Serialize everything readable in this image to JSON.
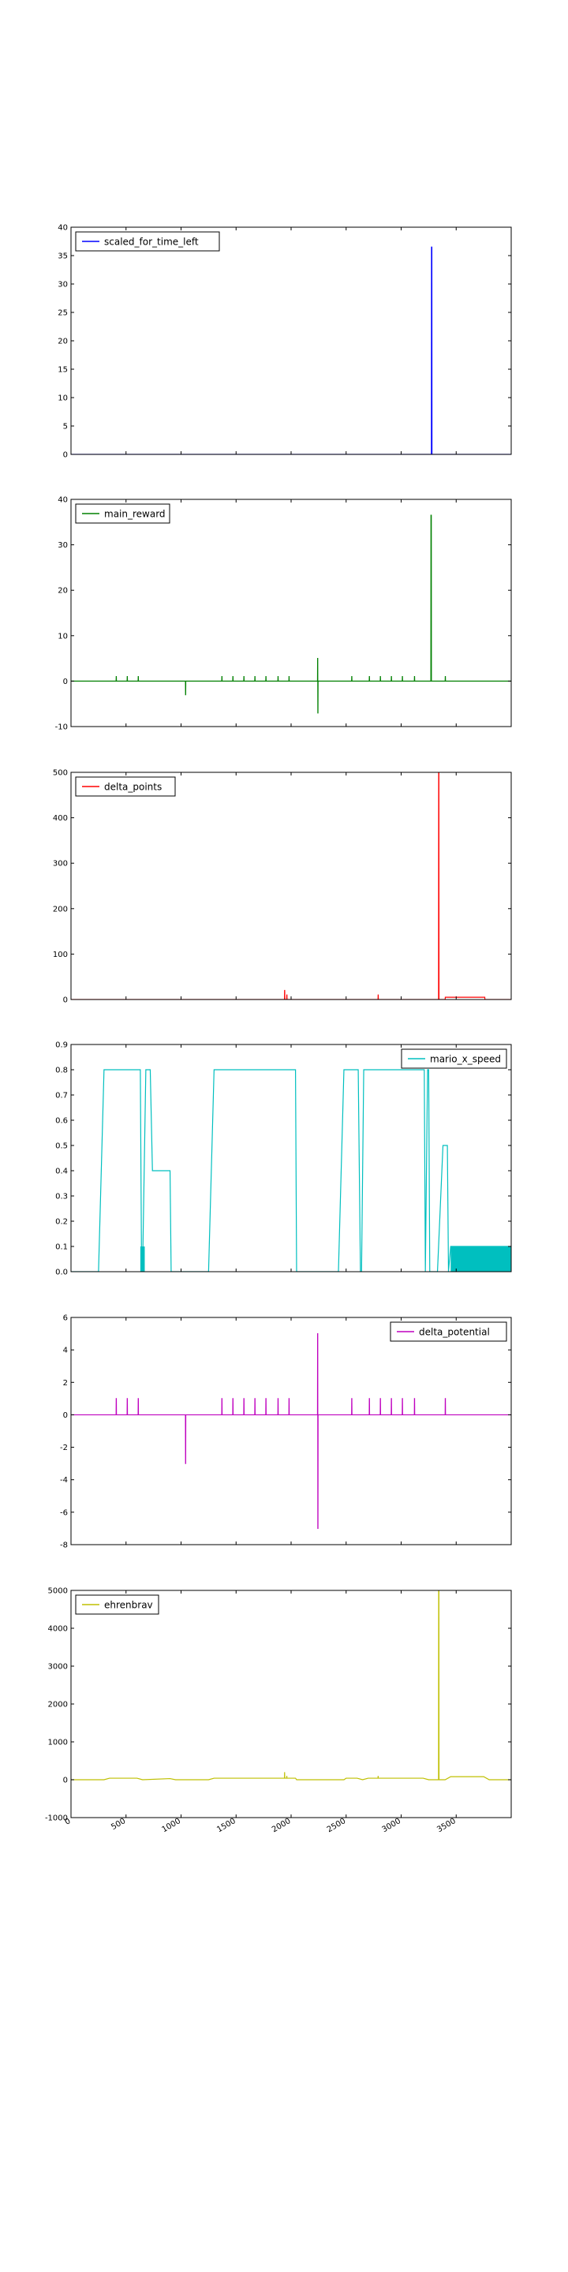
{
  "chart_data": [
    {
      "type": "line",
      "ylim": [
        0,
        40
      ],
      "yticks": [
        0,
        5,
        10,
        15,
        20,
        25,
        30,
        35,
        40
      ],
      "xlim": [
        0,
        4000
      ],
      "xticks": [],
      "grid": false,
      "legend_position": "upper-left",
      "series": [
        {
          "name": "scaled_for_time_left",
          "color": "#0000ff",
          "x": [
            0,
            3275,
            3276,
            3279,
            3280,
            4000
          ],
          "y": [
            0,
            0,
            36.5,
            36.5,
            0,
            0
          ]
        }
      ]
    },
    {
      "type": "line",
      "ylim": [
        -10,
        40
      ],
      "yticks": [
        -10,
        0,
        10,
        20,
        30,
        40
      ],
      "xlim": [
        0,
        4000
      ],
      "xticks": [],
      "grid": false,
      "legend_position": "upper-left",
      "series": [
        {
          "name": "main_reward",
          "color": "#008000",
          "x": [
            0,
            410,
            411,
            412,
            413,
            510,
            511,
            512,
            513,
            610,
            611,
            612,
            613,
            1040,
            1041,
            1042,
            1043,
            1370,
            1371,
            1372,
            1373,
            1470,
            1471,
            1472,
            1473,
            1570,
            1571,
            1572,
            1573,
            1670,
            1671,
            1672,
            1673,
            1770,
            1771,
            1772,
            1773,
            1880,
            1881,
            1882,
            1883,
            1980,
            1981,
            1982,
            1983,
            2240,
            2241,
            2242,
            2243,
            2244,
            2245,
            2550,
            2551,
            2552,
            2553,
            2710,
            2711,
            2712,
            2713,
            2810,
            2811,
            2812,
            2813,
            2910,
            2911,
            2912,
            2913,
            3010,
            3011,
            3012,
            3013,
            3120,
            3121,
            3122,
            3123,
            3270,
            3271,
            3274,
            3275,
            3400,
            3401,
            3402,
            3403,
            4000
          ],
          "y": [
            0,
            0,
            1,
            1,
            0,
            0,
            1,
            1,
            0,
            0,
            1,
            1,
            0,
            0,
            -3,
            -3,
            0,
            0,
            1,
            1,
            0,
            0,
            1,
            1,
            0,
            0,
            1,
            1,
            0,
            0,
            1,
            1,
            0,
            0,
            1,
            1,
            0,
            0,
            1,
            1,
            0,
            0,
            1,
            1,
            0,
            0,
            5,
            5,
            -7,
            -7,
            0,
            0,
            1,
            1,
            0,
            0,
            1,
            1,
            0,
            0,
            1,
            1,
            0,
            0,
            1,
            1,
            0,
            0,
            1,
            1,
            0,
            0,
            1,
            1,
            0,
            0,
            36.5,
            36.5,
            0,
            0,
            1,
            1,
            0,
            0
          ]
        }
      ]
    },
    {
      "type": "line",
      "ylim": [
        0,
        500
      ],
      "yticks": [
        0,
        100,
        200,
        300,
        400,
        500
      ],
      "xlim": [
        0,
        4000
      ],
      "xticks": [],
      "grid": false,
      "legend_position": "upper-left",
      "series": [
        {
          "name": "delta_points",
          "color": "#ff0000",
          "x": [
            0,
            1940,
            1941,
            1942,
            1943,
            1960,
            1961,
            1962,
            1963,
            2790,
            2791,
            2792,
            2793,
            3340,
            3341,
            3343,
            3344,
            3400,
            3401,
            3760,
            3761,
            4000
          ],
          "y": [
            0,
            0,
            20,
            20,
            0,
            0,
            10,
            10,
            0,
            0,
            10,
            10,
            0,
            0,
            500,
            500,
            0,
            0,
            5,
            5,
            0,
            0
          ]
        }
      ]
    },
    {
      "type": "line",
      "ylim": [
        0,
        0.9
      ],
      "yticks": [
        0.0,
        0.1,
        0.2,
        0.3,
        0.4,
        0.5,
        0.6,
        0.7,
        0.8,
        0.9
      ],
      "xlim": [
        0,
        4000
      ],
      "xticks": [],
      "grid": false,
      "legend_position": "upper-right",
      "series": [
        {
          "name": "mario_x_speed",
          "color": "#00bfbf",
          "x": [
            0,
            250,
            300,
            630,
            640,
            650,
            680,
            720,
            740,
            760,
            900,
            910,
            1190,
            1250,
            1300,
            2040,
            2050,
            2430,
            2480,
            2610,
            2630,
            2640,
            2660,
            2700,
            2720,
            3210,
            3220,
            3240,
            3250,
            3260,
            3330,
            3380,
            3420,
            3430,
            3450,
            4000
          ],
          "y": [
            0,
            0,
            0.8,
            0.8,
            0.1,
            0,
            0.8,
            0.8,
            0.4,
            0.4,
            0.4,
            0,
            0,
            0,
            0.8,
            0.8,
            0,
            0,
            0.8,
            0.8,
            0,
            0,
            0.8,
            0.8,
            0.8,
            0.8,
            0,
            0.8,
            0.8,
            0,
            0,
            0.5,
            0.5,
            0,
            0.1,
            0.1
          ]
        }
      ],
      "filled_regions": [
        {
          "x0": 630,
          "x1": 670,
          "y0": 0,
          "y1": 0.1
        },
        {
          "x0": 3450,
          "x1": 4000,
          "y0": 0,
          "y1": 0.1
        }
      ]
    },
    {
      "type": "line",
      "ylim": [
        -8,
        6
      ],
      "yticks": [
        -8,
        -6,
        -4,
        -2,
        0,
        2,
        4,
        6
      ],
      "xlim": [
        0,
        4000
      ],
      "xticks": [],
      "grid": false,
      "legend_position": "upper-right",
      "series": [
        {
          "name": "delta_potential",
          "color": "#bf00bf",
          "x": [
            0,
            410,
            411,
            412,
            413,
            510,
            511,
            512,
            513,
            610,
            611,
            612,
            613,
            1040,
            1041,
            1042,
            1043,
            1370,
            1371,
            1372,
            1373,
            1470,
            1471,
            1472,
            1473,
            1570,
            1571,
            1572,
            1573,
            1670,
            1671,
            1672,
            1673,
            1770,
            1771,
            1772,
            1773,
            1880,
            1881,
            1882,
            1883,
            1980,
            1981,
            1982,
            1983,
            2240,
            2241,
            2242,
            2243,
            2244,
            2245,
            2550,
            2551,
            2552,
            2553,
            2710,
            2711,
            2712,
            2713,
            2810,
            2811,
            2812,
            2813,
            2910,
            2911,
            2912,
            2913,
            3010,
            3011,
            3012,
            3013,
            3120,
            3121,
            3122,
            3123,
            3400,
            3401,
            3402,
            3403,
            4000
          ],
          "y": [
            0,
            0,
            1,
            1,
            0,
            0,
            1,
            1,
            0,
            0,
            1,
            1,
            0,
            0,
            -3,
            -3,
            0,
            0,
            1,
            1,
            0,
            0,
            1,
            1,
            0,
            0,
            1,
            1,
            0,
            0,
            1,
            1,
            0,
            0,
            1,
            1,
            0,
            0,
            1,
            1,
            0,
            0,
            1,
            1,
            0,
            0,
            5,
            5,
            -7,
            -7,
            0,
            0,
            1,
            1,
            0,
            0,
            1,
            1,
            0,
            0,
            1,
            1,
            0,
            0,
            1,
            1,
            0,
            0,
            1,
            1,
            0,
            0,
            1,
            1,
            0,
            0,
            1,
            1,
            0,
            0
          ]
        }
      ]
    },
    {
      "type": "line",
      "ylim": [
        -1000,
        5000
      ],
      "yticks": [
        -1000,
        0,
        1000,
        2000,
        3000,
        4000,
        5000
      ],
      "xlim": [
        0,
        4000
      ],
      "xticks": [
        0,
        500,
        1000,
        1500,
        2000,
        2500,
        3000,
        3500
      ],
      "grid": false,
      "legend_position": "upper-left",
      "series": [
        {
          "name": "ehrenbrav",
          "color": "#bfbf00",
          "x": [
            0,
            300,
            350,
            600,
            650,
            900,
            950,
            1250,
            1300,
            1940,
            1941,
            1942,
            1960,
            1961,
            1962,
            2040,
            2050,
            2480,
            2500,
            2600,
            2650,
            2700,
            2790,
            2791,
            2792,
            3200,
            3250,
            3340,
            3341,
            3343,
            3344,
            3400,
            3450,
            3750,
            3800,
            4000
          ],
          "y": [
            0,
            0,
            40,
            40,
            0,
            30,
            0,
            0,
            40,
            40,
            200,
            40,
            40,
            100,
            40,
            40,
            0,
            0,
            40,
            40,
            0,
            40,
            40,
            100,
            40,
            40,
            0,
            0,
            5000,
            5000,
            0,
            0,
            80,
            80,
            0,
            0
          ]
        }
      ]
    }
  ]
}
